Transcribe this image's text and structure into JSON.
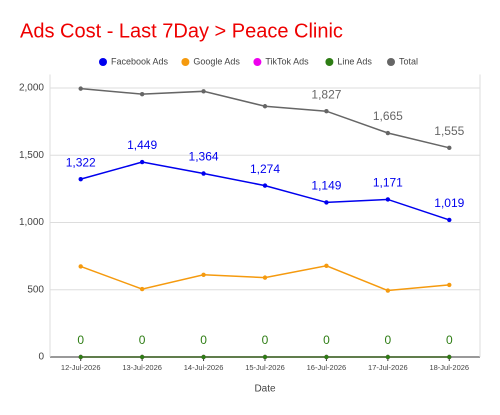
{
  "chart_data": {
    "type": "line",
    "title": "Ads Cost - Last 7Day > Peace Clinic",
    "x_label": "Date",
    "categories": [
      "12-Jul-2026",
      "13-Jul-2026",
      "14-Jul-2026",
      "15-Jul-2026",
      "16-Jul-2026",
      "17-Jul-2026",
      "18-Jul-2026"
    ],
    "series": [
      {
        "name": "Facebook Ads",
        "color": "#0000ee",
        "values": [
          1322,
          1449,
          1364,
          1274,
          1149,
          1171,
          1019
        ],
        "value_labels": [
          "1,322",
          "1,449",
          "1,364",
          "1,274",
          "1,149",
          "1,171",
          "1,019"
        ]
      },
      {
        "name": "Google Ads",
        "color": "#f59a0e",
        "values": [
          673,
          505,
          611,
          590,
          678,
          494,
          536
        ]
      },
      {
        "name": "TikTok Ads",
        "color": "#ee00ee",
        "values": [
          0,
          0,
          0,
          0,
          0,
          0,
          0
        ]
      },
      {
        "name": "Line Ads",
        "color": "#2e7d14",
        "values": [
          0,
          0,
          0,
          0,
          0,
          0,
          0
        ],
        "value_labels": [
          "0",
          "0",
          "0",
          "0",
          "0",
          "0",
          "0"
        ]
      },
      {
        "name": "Total",
        "color": "#666666",
        "values": [
          1995,
          1954,
          1975,
          1864,
          1827,
          1665,
          1555
        ],
        "value_labels": [
          null,
          null,
          null,
          null,
          "1,827",
          "1,665",
          "1,555"
        ]
      }
    ],
    "data_labels": [
      "Facebook Ads",
      "Google Ads",
      "Line Ads",
      "Total"
    ],
    "ylim": [
      0,
      2100
    ],
    "yticks": [
      0,
      500,
      {
        "value": 1000,
        "label": "1,000"
      },
      {
        "value": 1500,
        "label": "1,500"
      },
      {
        "value": 2000,
        "label": "2,000"
      }
    ],
    "grid": true,
    "legend": "top",
    "title_color": "#ee0000"
  }
}
